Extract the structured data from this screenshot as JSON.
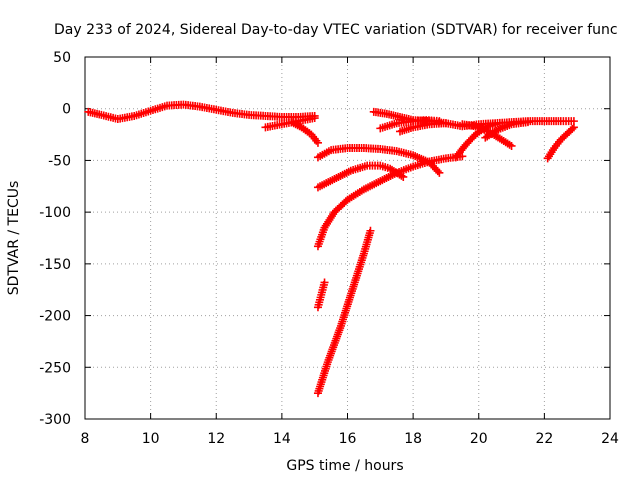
{
  "chart_data": {
    "type": "scatter",
    "title": "Day 233 of 2024, Sidereal Day-to-day VTEC variation (SDTVAR) for receiver func",
    "xlabel": "GPS time / hours",
    "ylabel": "SDTVAR / TECUs",
    "xlim": [
      8,
      24
    ],
    "ylim": [
      -300,
      50
    ],
    "xticks": [
      8,
      10,
      12,
      14,
      16,
      18,
      20,
      22,
      24
    ],
    "yticks": [
      50,
      0,
      -50,
      -100,
      -150,
      -200,
      -250,
      -300
    ],
    "xtick_labels": [
      "8",
      "10",
      "12",
      "14",
      "16",
      "18",
      "20",
      "22",
      "24"
    ],
    "ytick_labels": [
      "50",
      "0",
      "-50",
      "-100",
      "-150",
      "-200",
      "-250",
      "-300"
    ],
    "grid": true,
    "marker": "+",
    "color": "#ff0000",
    "series": [
      {
        "name": "arc-1",
        "points": [
          [
            8.1,
            -3
          ],
          [
            8.5,
            -6
          ],
          [
            9.0,
            -10
          ],
          [
            9.5,
            -7
          ],
          [
            10.0,
            -2
          ],
          [
            10.5,
            3
          ],
          [
            11.0,
            4
          ],
          [
            11.5,
            2
          ],
          [
            12.0,
            -1
          ],
          [
            12.5,
            -4
          ],
          [
            13.0,
            -6
          ],
          [
            13.5,
            -7
          ],
          [
            14.0,
            -8
          ],
          [
            14.5,
            -8
          ],
          [
            15.0,
            -7
          ]
        ]
      },
      {
        "name": "arc-2",
        "points": [
          [
            13.5,
            -18
          ],
          [
            14.0,
            -15
          ],
          [
            14.5,
            -12
          ],
          [
            15.0,
            -9
          ]
        ]
      },
      {
        "name": "arc-3",
        "points": [
          [
            14.3,
            -13
          ],
          [
            14.6,
            -18
          ],
          [
            14.9,
            -25
          ],
          [
            15.1,
            -33
          ]
        ]
      },
      {
        "name": "arc-4",
        "points": [
          [
            15.1,
            -47
          ],
          [
            15.5,
            -40
          ],
          [
            16.0,
            -38
          ],
          [
            16.5,
            -38
          ],
          [
            17.0,
            -39
          ],
          [
            17.5,
            -41
          ],
          [
            18.0,
            -45
          ],
          [
            18.5,
            -52
          ],
          [
            18.8,
            -62
          ]
        ]
      },
      {
        "name": "arc-5",
        "points": [
          [
            15.1,
            -76
          ],
          [
            15.6,
            -68
          ],
          [
            16.1,
            -60
          ],
          [
            16.6,
            -55
          ],
          [
            17.0,
            -55
          ],
          [
            17.3,
            -58
          ],
          [
            17.7,
            -66
          ]
        ]
      },
      {
        "name": "arc-6",
        "points": [
          [
            15.1,
            -133
          ],
          [
            15.3,
            -115
          ],
          [
            15.6,
            -100
          ],
          [
            16.0,
            -88
          ],
          [
            16.5,
            -78
          ],
          [
            17.0,
            -70
          ],
          [
            17.5,
            -62
          ],
          [
            18.0,
            -56
          ],
          [
            18.5,
            -51
          ],
          [
            19.0,
            -48
          ],
          [
            19.5,
            -46
          ]
        ]
      },
      {
        "name": "arc-7",
        "points": [
          [
            15.1,
            -192
          ],
          [
            15.2,
            -180
          ],
          [
            15.3,
            -168
          ]
        ]
      },
      {
        "name": "arc-8",
        "points": [
          [
            15.1,
            -275
          ],
          [
            15.4,
            -245
          ],
          [
            15.8,
            -210
          ],
          [
            16.2,
            -170
          ],
          [
            16.5,
            -140
          ],
          [
            16.7,
            -118
          ]
        ]
      },
      {
        "name": "arc-9",
        "points": [
          [
            16.8,
            -3
          ],
          [
            17.2,
            -5
          ],
          [
            17.6,
            -8
          ],
          [
            18.0,
            -11
          ],
          [
            18.5,
            -12
          ],
          [
            19.0,
            -14
          ],
          [
            19.5,
            -17
          ],
          [
            20.0,
            -15
          ],
          [
            20.5,
            -14
          ],
          [
            21.0,
            -13
          ],
          [
            21.5,
            -12
          ],
          [
            22.0,
            -12
          ],
          [
            22.5,
            -12
          ],
          [
            22.9,
            -12
          ]
        ]
      },
      {
        "name": "arc-10",
        "points": [
          [
            17.0,
            -19
          ],
          [
            17.5,
            -14
          ],
          [
            18.0,
            -12
          ],
          [
            18.4,
            -11
          ],
          [
            18.8,
            -12
          ]
        ]
      },
      {
        "name": "arc-11",
        "points": [
          [
            17.6,
            -22
          ],
          [
            18.0,
            -18
          ],
          [
            18.5,
            -15
          ],
          [
            19.0,
            -14
          ]
        ]
      },
      {
        "name": "arc-12",
        "points": [
          [
            19.5,
            -15
          ],
          [
            19.9,
            -17
          ],
          [
            20.3,
            -22
          ],
          [
            20.7,
            -30
          ],
          [
            21.0,
            -36
          ]
        ]
      },
      {
        "name": "arc-13",
        "points": [
          [
            19.3,
            -47
          ],
          [
            19.6,
            -35
          ],
          [
            19.9,
            -25
          ],
          [
            20.2,
            -18
          ],
          [
            20.5,
            -15
          ]
        ]
      },
      {
        "name": "arc-14",
        "points": [
          [
            20.2,
            -28
          ],
          [
            20.6,
            -20
          ],
          [
            21.0,
            -15
          ],
          [
            21.5,
            -13
          ]
        ]
      },
      {
        "name": "arc-15",
        "points": [
          [
            22.1,
            -48
          ],
          [
            22.3,
            -38
          ],
          [
            22.5,
            -30
          ],
          [
            22.7,
            -24
          ],
          [
            22.9,
            -18
          ]
        ]
      }
    ]
  }
}
